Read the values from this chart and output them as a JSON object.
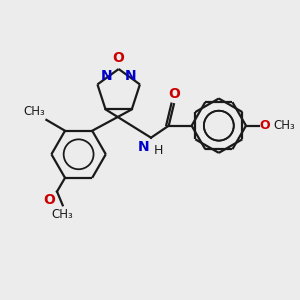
{
  "background_color": "#ececec",
  "bond_color": "#1a1a1a",
  "n_color": "#0000cc",
  "o_color": "#cc0000",
  "figsize": [
    3.0,
    3.0
  ],
  "dpi": 100,
  "xlim": [
    0,
    10
  ],
  "ylim": [
    0,
    10
  ]
}
